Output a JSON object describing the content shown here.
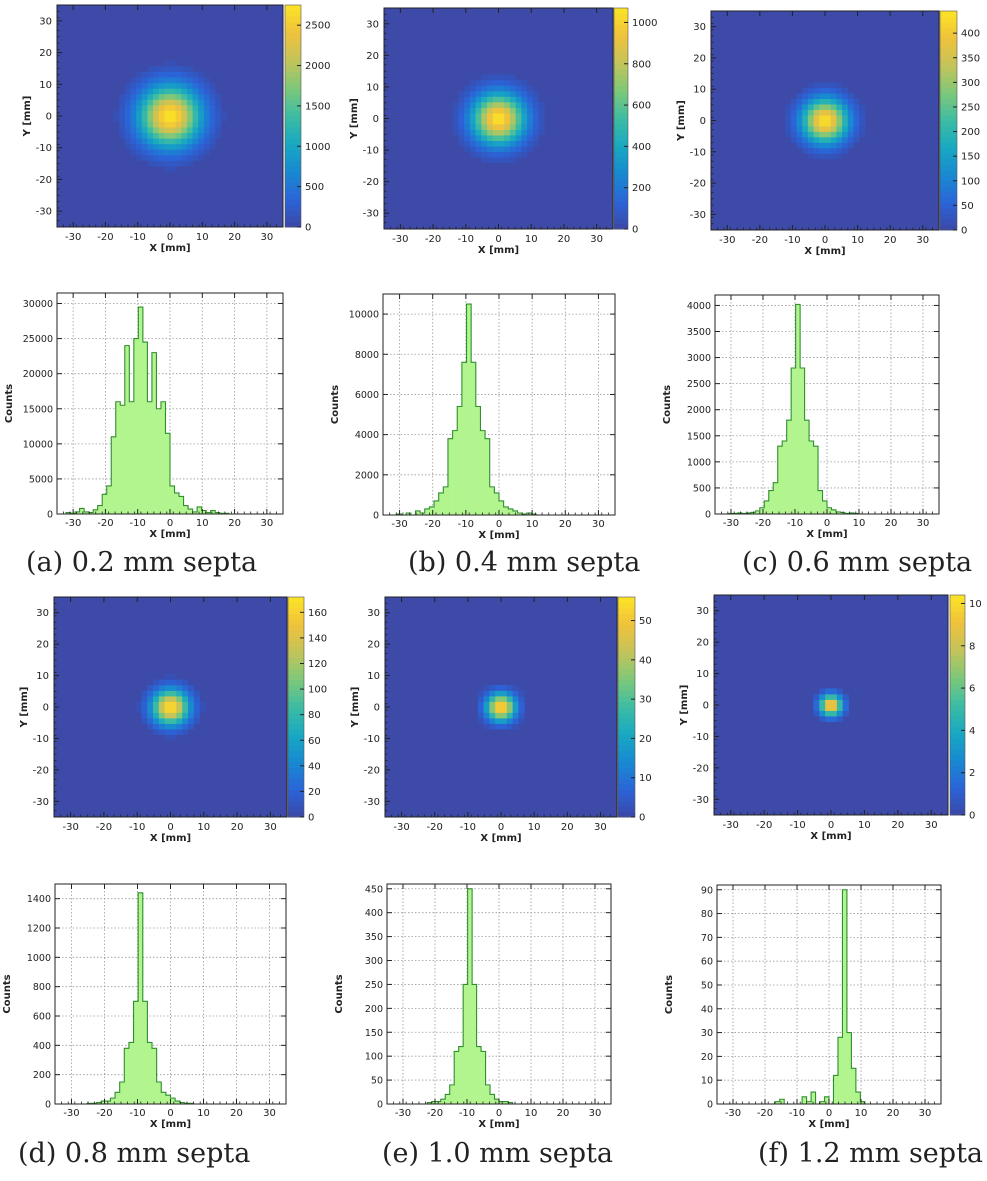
{
  "colors": {
    "fill": "#b2f58f",
    "edge": "#2f8f2f",
    "heat_bg": "#3d4aa8",
    "grid": "#9a9a9a",
    "palette": [
      "#3b47a6",
      "#2b64d8",
      "#1889d1",
      "#18a8c2",
      "#3cbca3",
      "#7dc87a",
      "#c3c45a",
      "#f0c23c",
      "#fbe425"
    ]
  },
  "captions": [
    "(a)  0.2 mm septa",
    "(b) 0.4 mm septa",
    "(c) 0.6 mm septa",
    "(d) 0.8 mm septa",
    "(e) 1.0 mm septa",
    "(f) 1.2 mm septa"
  ],
  "chart_data": [
    {
      "type": "heatmap",
      "panel": "a",
      "xlabel": "X [mm]",
      "ylabel": "Y [mm]",
      "xlim": [
        -35,
        35
      ],
      "ylim": [
        -35,
        35
      ],
      "xticks": [
        -30,
        -20,
        -10,
        0,
        10,
        20,
        30
      ],
      "yticks": [
        -30,
        -20,
        -10,
        0,
        10,
        20,
        30
      ],
      "zmax": 2750,
      "zticks": [
        0,
        500,
        1000,
        1500,
        2000,
        2500
      ],
      "peak": 2750,
      "spot_sigma_mm": 6.5
    },
    {
      "type": "heatmap",
      "panel": "b",
      "xlabel": "X [mm]",
      "ylabel": "Y [mm]",
      "xlim": [
        -35,
        35
      ],
      "ylim": [
        -35,
        35
      ],
      "xticks": [
        -30,
        -20,
        -10,
        0,
        10,
        20,
        30
      ],
      "yticks": [
        -30,
        -20,
        -10,
        0,
        10,
        20,
        30
      ],
      "zmax": 1070,
      "zticks": [
        0,
        200,
        400,
        600,
        800,
        1000
      ],
      "peak": 1060,
      "spot_sigma_mm": 5.5
    },
    {
      "type": "heatmap",
      "panel": "c",
      "xlabel": "X [mm]",
      "ylabel": "Y [mm]",
      "xlim": [
        -35,
        35
      ],
      "ylim": [
        -35,
        35
      ],
      "xticks": [
        -30,
        -20,
        -10,
        0,
        10,
        20,
        30
      ],
      "yticks": [
        -30,
        -20,
        -10,
        0,
        10,
        20,
        30
      ],
      "zmax": 445,
      "zticks": [
        0,
        50,
        100,
        150,
        200,
        250,
        300,
        350,
        400
      ],
      "peak": 440,
      "spot_sigma_mm": 4.8
    },
    {
      "type": "heatmap",
      "panel": "d",
      "xlabel": "X [mm]",
      "ylabel": "Y [mm]",
      "xlim": [
        -35,
        35
      ],
      "ylim": [
        -35,
        35
      ],
      "xticks": [
        -30,
        -20,
        -10,
        0,
        10,
        20,
        30
      ],
      "yticks": [
        -30,
        -20,
        -10,
        0,
        10,
        20,
        30
      ],
      "zmax": 172,
      "zticks": [
        0,
        20,
        40,
        60,
        80,
        100,
        120,
        140,
        160
      ],
      "peak": 170,
      "spot_sigma_mm": 3.8
    },
    {
      "type": "heatmap",
      "panel": "e",
      "xlabel": "X [mm]",
      "ylabel": "Y [mm]",
      "xlim": [
        -35,
        35
      ],
      "ylim": [
        -35,
        35
      ],
      "xticks": [
        -30,
        -20,
        -10,
        0,
        10,
        20,
        30
      ],
      "yticks": [
        -30,
        -20,
        -10,
        0,
        10,
        20,
        30
      ],
      "zmax": 56,
      "zticks": [
        0,
        10,
        20,
        30,
        40,
        50
      ],
      "peak": 55,
      "spot_sigma_mm": 3.0
    },
    {
      "type": "heatmap",
      "panel": "f",
      "xlabel": "X [mm]",
      "ylabel": "Y [mm]",
      "xlim": [
        -35,
        35
      ],
      "ylim": [
        -35,
        35
      ],
      "xticks": [
        -30,
        -20,
        -10,
        0,
        10,
        20,
        30
      ],
      "yticks": [
        -30,
        -20,
        -10,
        0,
        10,
        20,
        30
      ],
      "zmax": 10.4,
      "zticks": [
        0,
        2,
        4,
        6,
        8,
        10
      ],
      "peak": 10.2,
      "spot_sigma_mm": 2.3
    },
    {
      "type": "bar",
      "panel": "a",
      "xlabel": "X [mm]",
      "ylabel": "Counts",
      "xlim": [
        -35,
        35
      ],
      "ylim": [
        0,
        31500
      ],
      "xticks": [
        -30,
        -20,
        -10,
        0,
        10,
        20,
        30
      ],
      "yticks": [
        0,
        5000,
        10000,
        15000,
        20000,
        25000,
        30000
      ],
      "bin_edges_start": -35,
      "bin_width": 1.4,
      "values": [
        0,
        0,
        200,
        100,
        300,
        800,
        300,
        200,
        600,
        1200,
        2800,
        4000,
        11000,
        16000,
        15500,
        24000,
        16000,
        25000,
        29500,
        24500,
        16000,
        23000,
        15000,
        16000,
        11500,
        4000,
        3000,
        2500,
        1200,
        700,
        300,
        1000,
        500,
        200,
        500,
        200,
        100,
        100,
        0,
        0
      ]
    },
    {
      "type": "bar",
      "panel": "b",
      "xlabel": "X [mm]",
      "ylabel": "Counts",
      "xlim": [
        -35,
        35
      ],
      "ylim": [
        0,
        11000
      ],
      "xticks": [
        -30,
        -20,
        -10,
        0,
        10,
        20,
        30
      ],
      "yticks": [
        0,
        2000,
        4000,
        6000,
        8000,
        10000
      ],
      "bin_edges_start": -35,
      "bin_width": 1.4,
      "values": [
        0,
        0,
        0,
        50,
        0,
        100,
        0,
        200,
        100,
        300,
        400,
        700,
        1100,
        1400,
        3800,
        4200,
        5400,
        7600,
        10500,
        7600,
        5400,
        4200,
        3800,
        1400,
        1100,
        700,
        400,
        300,
        200,
        100,
        50,
        100,
        50,
        0,
        0,
        0,
        0,
        0,
        0,
        0
      ]
    },
    {
      "type": "bar",
      "panel": "c",
      "xlabel": "X [mm]",
      "ylabel": "Counts",
      "xlim": [
        -35,
        35
      ],
      "ylim": [
        0,
        4200
      ],
      "xticks": [
        -30,
        -20,
        -10,
        0,
        10,
        20,
        30
      ],
      "yticks": [
        0,
        500,
        1000,
        1500,
        2000,
        2500,
        3000,
        3500,
        4000
      ],
      "bin_edges_start": -35,
      "bin_width": 1.4,
      "values": [
        0,
        0,
        0,
        10,
        10,
        20,
        10,
        20,
        30,
        60,
        120,
        250,
        450,
        600,
        1300,
        1400,
        1800,
        2800,
        4020,
        2800,
        1800,
        1400,
        1300,
        450,
        250,
        120,
        80,
        40,
        30,
        10,
        20,
        10,
        0,
        0,
        0,
        0,
        0,
        0,
        0,
        0
      ]
    },
    {
      "type": "bar",
      "panel": "d",
      "xlabel": "X [mm]",
      "ylabel": "Counts",
      "xlim": [
        -35,
        35
      ],
      "ylim": [
        0,
        1500
      ],
      "xticks": [
        -30,
        -20,
        -10,
        0,
        10,
        20,
        30
      ],
      "yticks": [
        0,
        200,
        400,
        600,
        800,
        1000,
        1200,
        1400
      ],
      "bin_edges_start": -35,
      "bin_width": 1.4,
      "values": [
        0,
        0,
        0,
        0,
        0,
        0,
        0,
        5,
        5,
        10,
        20,
        20,
        40,
        80,
        150,
        380,
        420,
        700,
        1440,
        700,
        420,
        380,
        150,
        80,
        60,
        40,
        20,
        10,
        5,
        5,
        0,
        0,
        0,
        0,
        0,
        0,
        0,
        0,
        0,
        0
      ]
    },
    {
      "type": "bar",
      "panel": "e",
      "xlabel": "X [mm]",
      "ylabel": "Counts",
      "xlim": [
        -35,
        35
      ],
      "ylim": [
        0,
        460
      ],
      "xticks": [
        -30,
        -20,
        -10,
        0,
        10,
        20,
        30
      ],
      "yticks": [
        0,
        50,
        100,
        150,
        200,
        250,
        300,
        350,
        400,
        450
      ],
      "bin_edges_start": -35,
      "bin_width": 1.4,
      "values": [
        0,
        0,
        0,
        0,
        0,
        0,
        0,
        0,
        0,
        3,
        5,
        5,
        10,
        20,
        40,
        110,
        120,
        250,
        450,
        250,
        120,
        110,
        40,
        20,
        10,
        5,
        5,
        3,
        0,
        0,
        0,
        0,
        0,
        0,
        0,
        0,
        0,
        0,
        0,
        0
      ]
    },
    {
      "type": "bar",
      "panel": "f",
      "xlabel": "X [mm]",
      "ylabel": "Counts",
      "xlim": [
        -35,
        35
      ],
      "ylim": [
        0,
        92
      ],
      "xticks": [
        -30,
        -20,
        -10,
        0,
        10,
        20,
        30
      ],
      "yticks": [
        0,
        10,
        20,
        30,
        40,
        50,
        60,
        70,
        80,
        90
      ],
      "bin_edges_start": -35,
      "bin_width": 1.4,
      "values": [
        0,
        0,
        0,
        0,
        0,
        0,
        0,
        0,
        0,
        0,
        0,
        0,
        0,
        1,
        2,
        0,
        0,
        0,
        0,
        3,
        1,
        5,
        0,
        1,
        3,
        0,
        12,
        28,
        90,
        30,
        15,
        5,
        1,
        0,
        0,
        0,
        0,
        0,
        0,
        0
      ]
    }
  ]
}
